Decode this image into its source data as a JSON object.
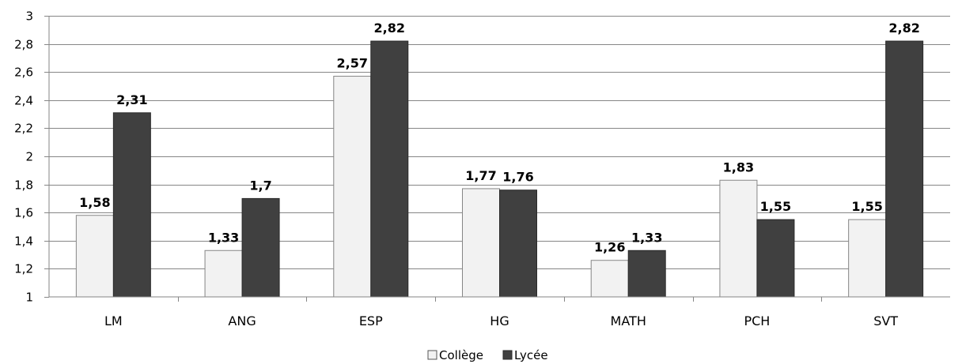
{
  "chart_data": {
    "type": "bar",
    "categories": [
      "LM",
      "ANG",
      "ESP",
      "HG",
      "MATH",
      "PCH",
      "SVT"
    ],
    "series": [
      {
        "name": "Collège",
        "values": [
          1.58,
          1.33,
          2.57,
          1.77,
          1.26,
          1.83,
          1.55
        ],
        "labels": [
          "1,58",
          "1,33",
          "2,57",
          "1,77",
          "1,26",
          "1,83",
          "1,55"
        ],
        "color": "#f2f2f2"
      },
      {
        "name": "Lycée",
        "values": [
          2.31,
          1.7,
          2.82,
          1.76,
          1.33,
          1.55,
          2.82
        ],
        "labels": [
          "2,31",
          "1,7",
          "2,82",
          "1,76",
          "1,33",
          "1,55",
          "2,82"
        ],
        "color": "#404040"
      }
    ],
    "yticks": [
      1,
      1.2,
      1.4,
      1.6,
      1.8,
      2,
      2.2,
      2.4,
      2.6,
      2.8,
      3
    ],
    "ytick_labels": [
      "1",
      "1,2",
      "1,4",
      "1,6",
      "1,8",
      "2",
      "2,2",
      "2,4",
      "2,6",
      "2,8",
      "3"
    ],
    "ylim": [
      1,
      3
    ],
    "grid": true,
    "legend_position": "bottom-center",
    "title": "",
    "xlabel": "",
    "ylabel": ""
  }
}
